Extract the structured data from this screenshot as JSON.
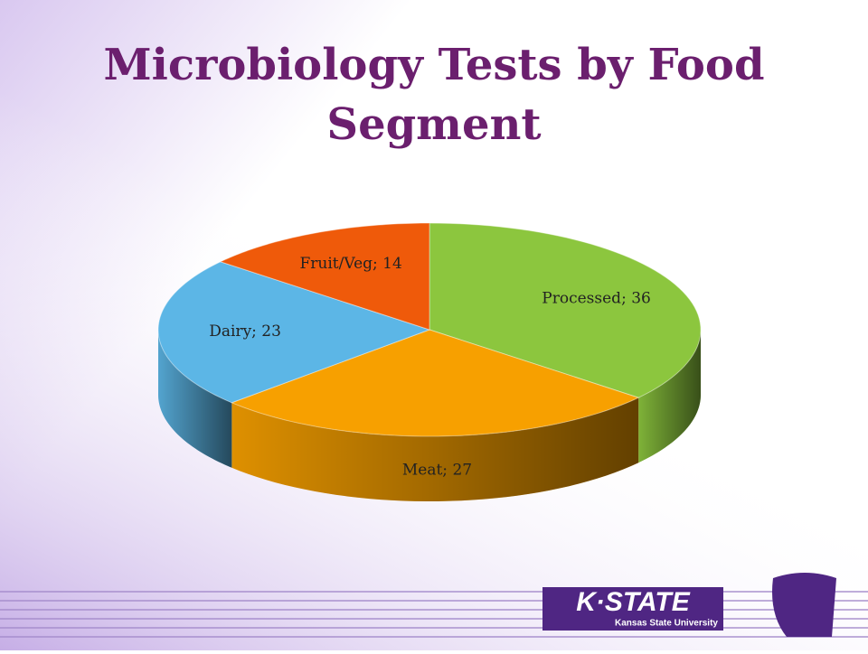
{
  "chart_data": {
    "type": "pie",
    "title": "Microbiology Tests by Food Segment",
    "categories": [
      "Processed",
      "Meat",
      "Dairy",
      "Fruit/Veg"
    ],
    "values": [
      36,
      27,
      23,
      14
    ],
    "value_labels": [
      "Processed; 36",
      "Meat; 27",
      "Dairy; 23",
      "Fruit/Veg; 14"
    ],
    "colors": [
      "#8cc63e",
      "#f7a000",
      "#5cb6e6",
      "#ef5a0a"
    ]
  },
  "logo": {
    "name": "K·STATE",
    "subtitle": "Kansas State University"
  }
}
